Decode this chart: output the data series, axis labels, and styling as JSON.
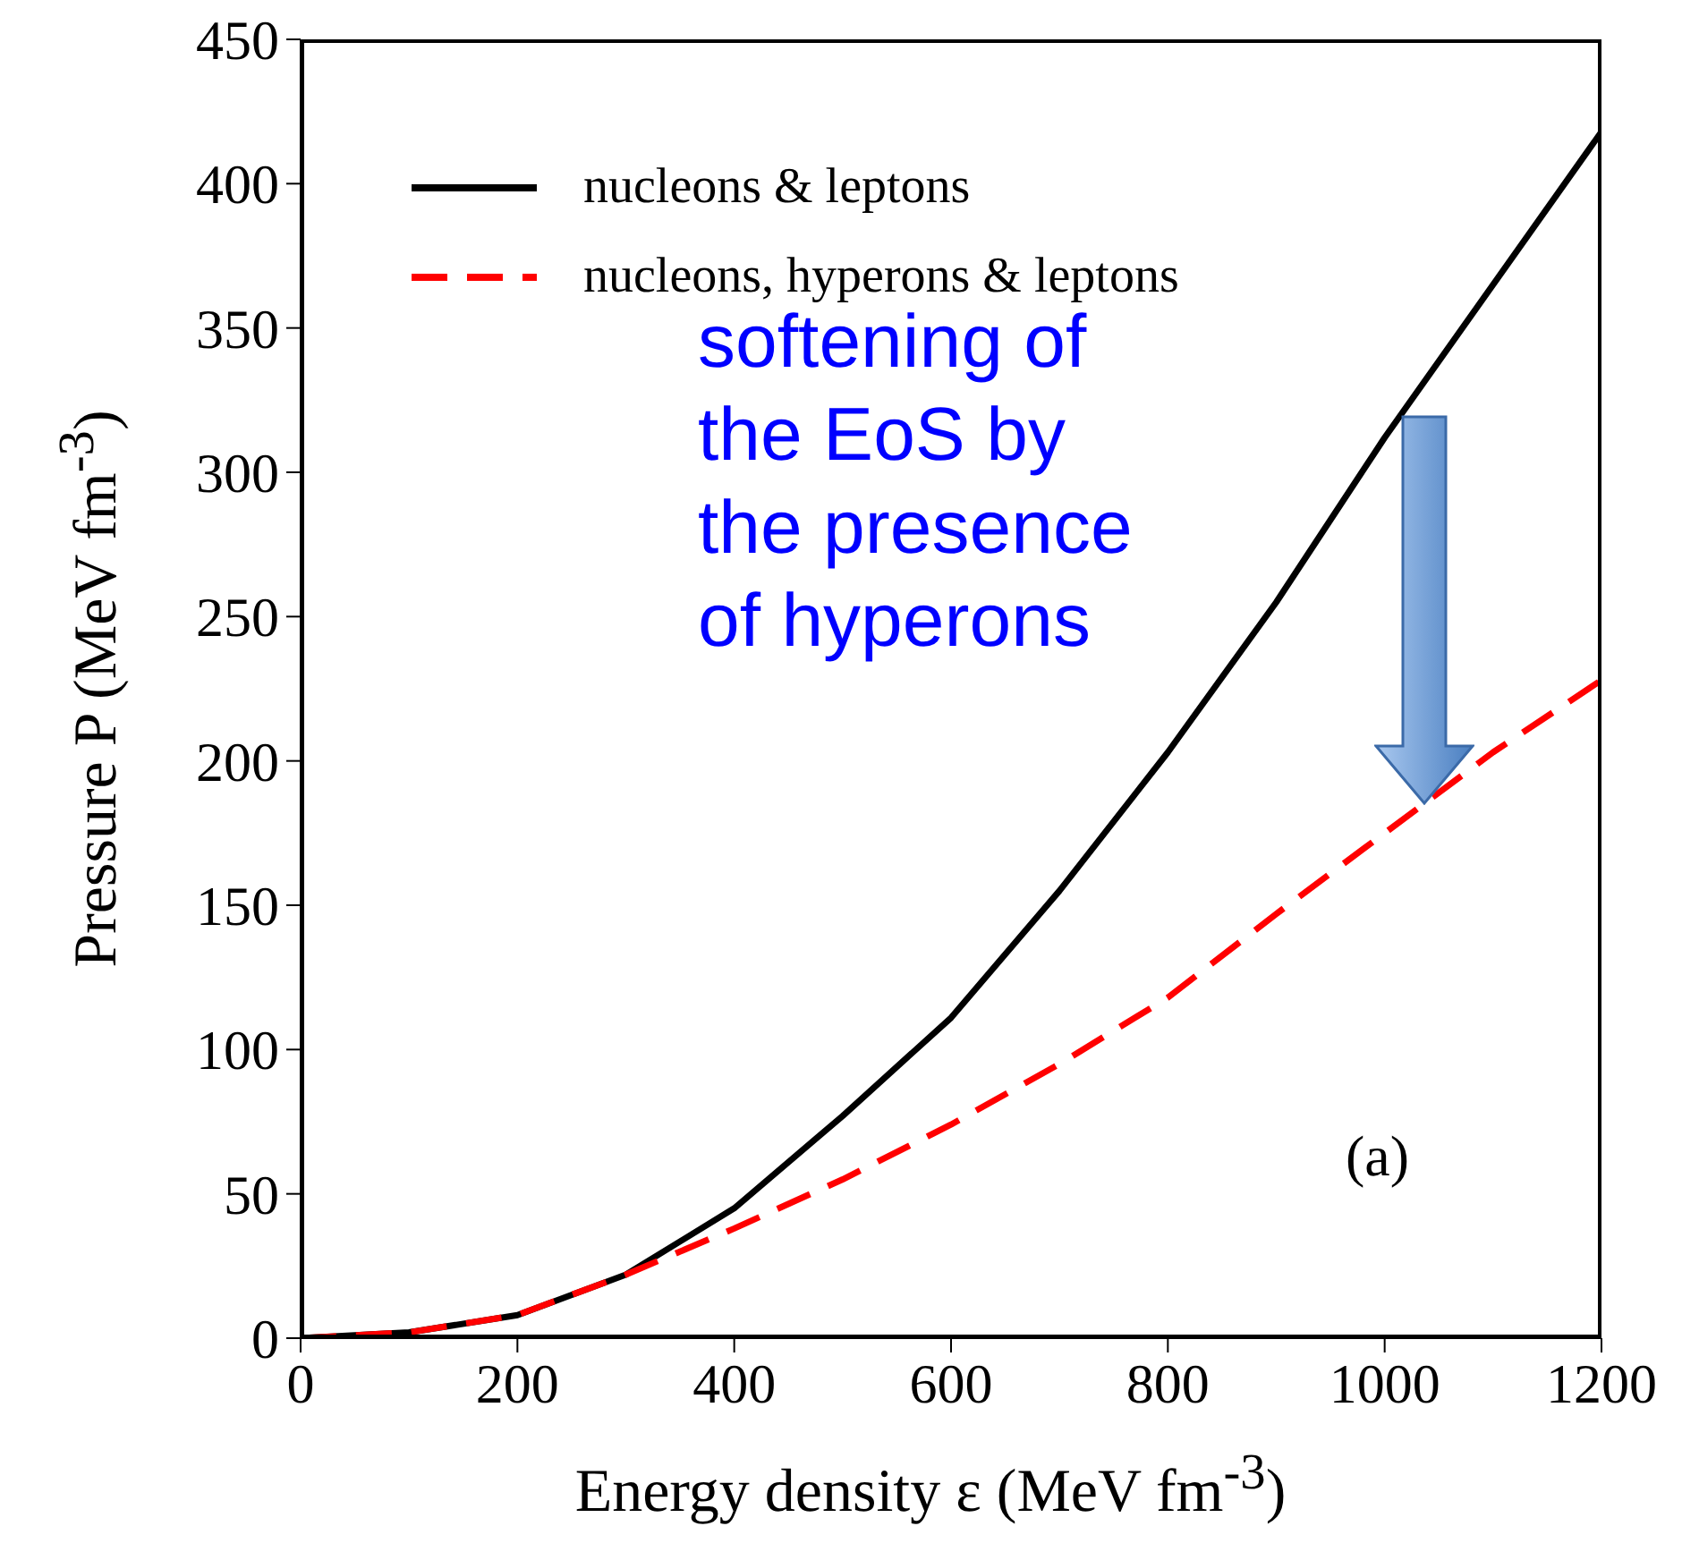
{
  "chart_data": {
    "type": "line",
    "xlabel": "Energy density ε (MeV fm$^{-3}$)",
    "ylabel": "Pressure P (MeV fm$^{-3}$)",
    "x": [
      0,
      100,
      200,
      300,
      400,
      500,
      600,
      700,
      800,
      900,
      1000,
      1100,
      1200
    ],
    "series": [
      {
        "name": "nucleons & leptons",
        "color": "#000000",
        "line_style": "solid",
        "values": [
          0,
          2,
          8,
          22,
          45,
          77,
          111,
          155,
          203,
          255,
          312,
          365,
          418
        ]
      },
      {
        "name": "nucleons, hyperons & leptons",
        "color": "#ff0000",
        "line_style": "dashed",
        "values": [
          0,
          2,
          8,
          22,
          38,
          55,
          74,
          95,
          118,
          147,
          175,
          203,
          228
        ]
      }
    ],
    "xlim": [
      0,
      1200
    ],
    "xticks": [
      0,
      200,
      400,
      600,
      800,
      1000,
      1200
    ],
    "ylim": [
      0,
      450
    ],
    "yticks": [
      0,
      50,
      100,
      150,
      200,
      250,
      300,
      350,
      400,
      450
    ],
    "legend": "top left",
    "marker": "none",
    "annotations": [
      "softening of the EoS by the presence of hyperons",
      "(a)"
    ]
  }
}
